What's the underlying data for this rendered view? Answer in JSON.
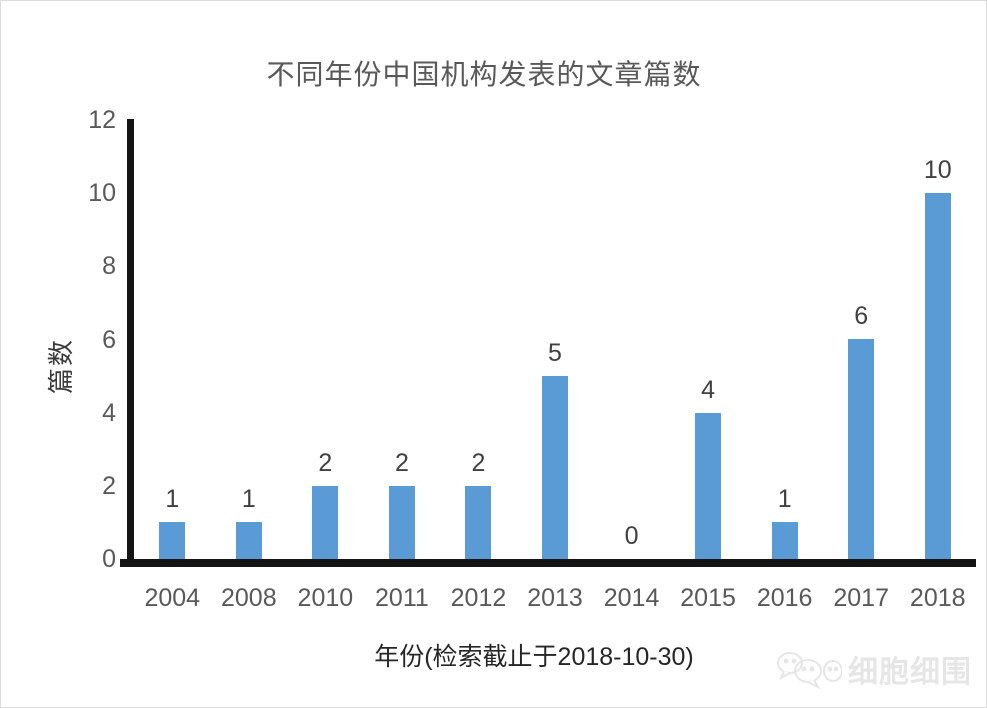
{
  "chart": {
    "title": "不同年份中国机构发表的文章篇数",
    "ylabel": "篇数",
    "xlabel": "年份(检索截止于2018-10-30)"
  },
  "chart_data": {
    "type": "bar",
    "title": "不同年份中国机构发表的文章篇数",
    "categories": [
      "2004",
      "2008",
      "2010",
      "2011",
      "2012",
      "2013",
      "2014",
      "2015",
      "2016",
      "2017",
      "2018"
    ],
    "values": [
      1,
      1,
      2,
      2,
      2,
      5,
      0,
      4,
      1,
      6,
      10
    ],
    "xlabel": "年份(检索截止于2018-10-30)",
    "ylabel": "篇数",
    "ylim": [
      0,
      12
    ],
    "yticks": [
      0,
      2,
      4,
      6,
      8,
      10,
      12
    ],
    "bar_color": "#5B9BD5",
    "axis_color": "#141414",
    "tick_label_color": "#595959",
    "data_label_color": "#404040",
    "grid": false,
    "legend": false,
    "data_labels": true
  },
  "watermark": {
    "icon": "wechat-icon",
    "text": "细胞细围"
  }
}
